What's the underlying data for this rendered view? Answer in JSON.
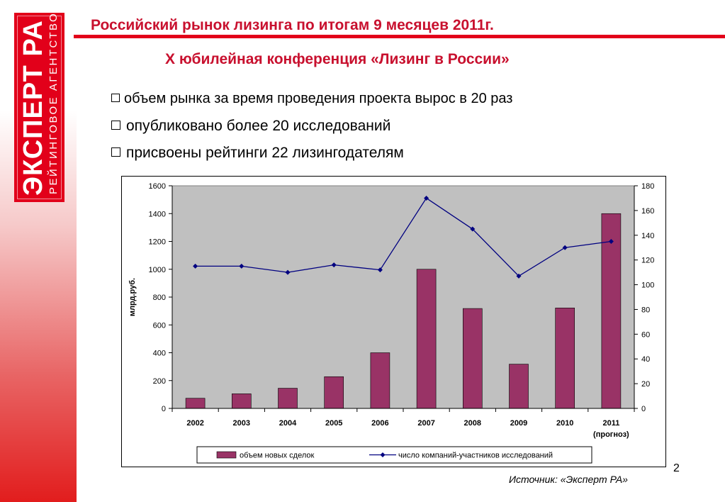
{
  "logo": {
    "main": "ЭКСПЕРТ РА",
    "sub": "РЕЙТИНГОВОЕ АГЕНТСТВО"
  },
  "page_title": "Российский рынок лизинга по итогам 9 месяцев 2011г.",
  "subtitle": "X юбилейная конференция «Лизинг в России»",
  "bullets": [
    "объем рынка за время проведения проекта вырос в 20 раз",
    "опубликовано более 20 исследований",
    "присвоены рейтинги 22 лизингодателям"
  ],
  "page_number": "2",
  "source": "Источник: «Эксперт РА»",
  "colors": {
    "bar": "#993366",
    "line": "#000080",
    "plot_bg": "#c0c0c0",
    "accent": "#e2001a"
  },
  "chart_data": {
    "type": "bar",
    "categories": [
      "2002",
      "2003",
      "2004",
      "2005",
      "2006",
      "2007",
      "2008",
      "2009",
      "2010",
      "2011"
    ],
    "category_note": {
      "2011": "(прогноз)"
    },
    "ylabel": "млрд.руб.",
    "ylim": [
      0,
      1600
    ],
    "yticks": [
      0,
      200,
      400,
      600,
      800,
      1000,
      1200,
      1400,
      1600
    ],
    "y2lim": [
      0,
      180
    ],
    "y2ticks": [
      0,
      20,
      40,
      60,
      80,
      100,
      120,
      140,
      160,
      180
    ],
    "grid": false,
    "legend_position": "bottom",
    "series": [
      {
        "name": "объем новых сделок",
        "type": "bar",
        "axis": "left",
        "values": [
          73,
          105,
          145,
          228,
          400,
          1000,
          718,
          318,
          722,
          1400
        ]
      },
      {
        "name": "число компаний-участников исследований",
        "type": "line",
        "axis": "right",
        "values": [
          115,
          115,
          110,
          116,
          112,
          170,
          145,
          107,
          130,
          135
        ]
      }
    ]
  }
}
